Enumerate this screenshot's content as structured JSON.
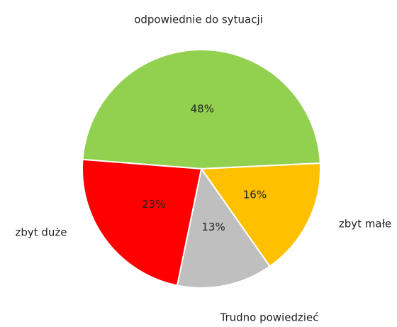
{
  "chart_data": {
    "type": "pie",
    "categories": [
      "odpowiednie do sytuacji",
      "zbyt małe",
      "Trudno powiedzieć",
      "zbyt duże"
    ],
    "values": [
      48,
      16,
      13,
      23
    ],
    "value_labels": [
      "48%",
      "16%",
      "13%",
      "23%"
    ],
    "colors": [
      "#92d050",
      "#ffc000",
      "#bfbfbf",
      "#ff0000"
    ]
  }
}
